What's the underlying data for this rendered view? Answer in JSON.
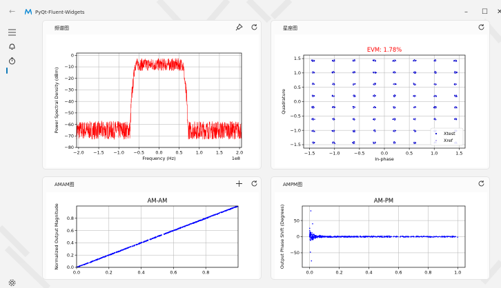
{
  "app": {
    "title": "PyQt-Fluent-Widgets"
  },
  "window_controls": {
    "minimize": "–",
    "maximize": "☐",
    "close": "✕"
  },
  "sidebar": {
    "items": [
      {
        "name": "menu-icon",
        "glyph": "≡"
      },
      {
        "name": "bell-icon",
        "glyph": "🔔"
      },
      {
        "name": "timer-icon",
        "glyph": "⏱"
      },
      {
        "name": "settings-icon",
        "glyph": "⚙"
      }
    ]
  },
  "cards": [
    {
      "title": "频谱图",
      "actions": [
        "pin-icon",
        "refresh-icon"
      ]
    },
    {
      "title": "星座图",
      "actions": [
        "refresh-icon"
      ]
    },
    {
      "title": "AMAM图",
      "actions": [
        "add-icon",
        "refresh-icon"
      ]
    },
    {
      "title": "AMPM图",
      "actions": [
        "refresh-icon"
      ]
    }
  ],
  "chart_data": [
    {
      "type": "line",
      "title": "",
      "xlabel": "Frequency (Hz)",
      "ylabel": "Power Spectral Density (dBm)",
      "x_scale_label": "1e8",
      "xlim": [
        -2.05,
        2.05
      ],
      "ylim": [
        -80,
        2
      ],
      "xticks": [
        -2.0,
        -1.5,
        -1.0,
        -0.5,
        0.0,
        0.5,
        1.0,
        1.5,
        2.0
      ],
      "xtick_labels": [
        "−2.0",
        "−1.5",
        "−1.0",
        "−0.5",
        "0.0",
        "0.5",
        "1.0",
        "1.5",
        "2.0"
      ],
      "yticks": [
        0,
        -10,
        -20,
        -30,
        -40,
        -50,
        -60,
        -70,
        -80
      ],
      "ytick_labels": [
        "0",
        "−10",
        "−20",
        "−30",
        "−40",
        "−50",
        "−60",
        "−70",
        "−80"
      ],
      "grid": true,
      "color": "#ff0000",
      "series": [
        {
          "x": [
            -2.05,
            -0.72,
            -0.69,
            -0.6,
            0,
            0.6,
            0.69,
            0.72,
            2.05
          ],
          "y": [
            -65,
            -65,
            -40,
            -8,
            -8,
            -8,
            -40,
            -65,
            -65
          ]
        }
      ]
    },
    {
      "type": "scatter",
      "title": "EVM: 1.78%",
      "title_color": "#ff0000",
      "xlabel": "In-phase",
      "ylabel": "Quadrature",
      "xlim": [
        -1.62,
        1.62
      ],
      "ylim": [
        -1.62,
        1.62
      ],
      "xticks": [
        -1.5,
        -1.0,
        -0.5,
        0.0,
        0.5,
        1.0,
        1.5
      ],
      "xtick_labels": [
        "−1.5",
        "−1.0",
        "−0.5",
        "0.0",
        "0.5",
        "1.0",
        "1.5"
      ],
      "yticks": [
        1.5,
        1.0,
        0.5,
        0.0,
        -0.5,
        -1.0,
        -1.5
      ],
      "ytick_labels": [
        "1.5",
        "1.0",
        "0.5",
        "0.0",
        "−0.5",
        "−1.0",
        "−1.5"
      ],
      "grid": true,
      "constellation_levels": [
        -1.43,
        -1.02,
        -0.61,
        -0.2,
        0.2,
        0.61,
        1.02,
        1.43
      ],
      "series": [
        {
          "name": "Xtest",
          "color": "#0000cc"
        },
        {
          "name": "Xref",
          "color": "#b9b0ee"
        }
      ],
      "legend": "bottom-right"
    },
    {
      "type": "scatter",
      "title": "AM-AM",
      "xlabel": "",
      "ylabel": "Normalized Output Magnitude",
      "xlim": [
        0,
        1.0
      ],
      "ylim": [
        0,
        1.0
      ],
      "xticks": [
        0.0,
        0.2,
        0.4,
        0.6,
        0.8
      ],
      "xtick_labels": [
        "0.0",
        "0.2",
        "0.4",
        "0.6",
        "0.8"
      ],
      "yticks": [
        0.8,
        0.6,
        0.4,
        0.2,
        0.0
      ],
      "ytick_labels": [
        "0.8",
        "0.6",
        "0.4",
        "0.2",
        "0.0"
      ],
      "grid": true,
      "color": "#0000ff",
      "series": [
        {
          "x": [
            0.0,
            1.0
          ],
          "y": [
            0.0,
            1.0
          ]
        }
      ]
    },
    {
      "type": "scatter",
      "title": "AM-PM",
      "xlabel": "",
      "ylabel": "Output Phase Shift (Degrees)",
      "xlim": [
        -0.05,
        1.05
      ],
      "ylim": [
        -95,
        95
      ],
      "xticks": [
        0.0,
        0.2,
        0.4,
        0.6,
        0.8,
        1.0
      ],
      "xtick_labels": [
        "0.0",
        "0.2",
        "0.4",
        "0.6",
        "0.8",
        "1.0"
      ],
      "yticks": [
        50,
        0,
        -50
      ],
      "ytick_labels": [
        "50",
        "0",
        "−50"
      ],
      "grid": true,
      "color": "#0000ff",
      "series": [
        {
          "x": [
            0.0,
            1.0
          ],
          "y": [
            0.0,
            0.0
          ]
        }
      ]
    }
  ]
}
